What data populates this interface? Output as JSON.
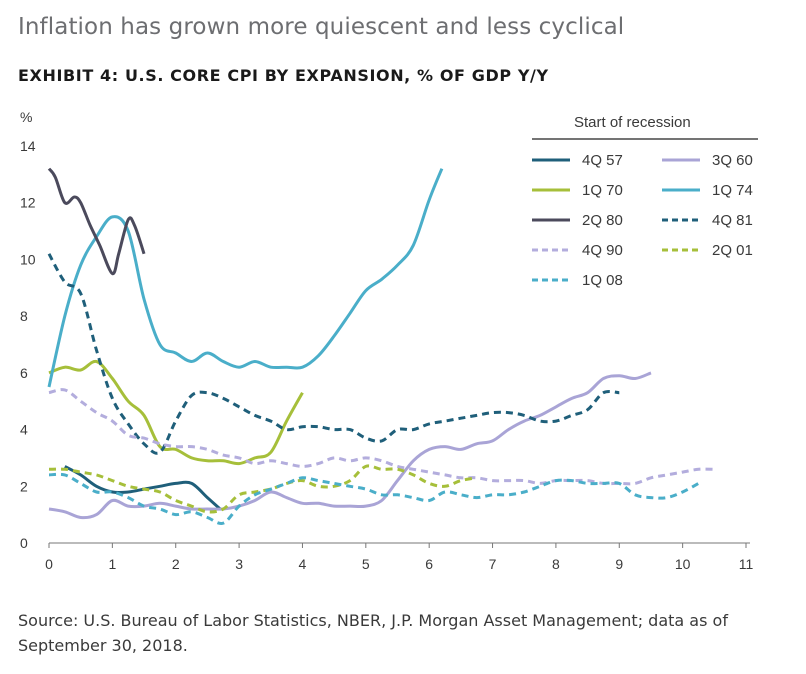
{
  "headline": "Inflation has grown more quiescent and less cyclical",
  "source": "Source: U.S. Bureau of Labor Statistics, NBER, J.P. Morgan Asset Management; data as of September 30, 2018.",
  "chart_data": {
    "type": "line",
    "title": "EXHIBIT 4: U.S. CORE CPI BY EXPANSION, % OF GDP Y/Y",
    "ylabel": "%",
    "legend_title": "Start of recession",
    "legend_position": "top-right",
    "xlim": [
      0,
      11
    ],
    "ylim": [
      0,
      14
    ],
    "x_ticks": [
      "0",
      "1",
      "2",
      "3",
      "4",
      "5",
      "6",
      "7",
      "8",
      "9",
      "10",
      "11"
    ],
    "y_ticks": [
      "0",
      "2",
      "4",
      "6",
      "8",
      "10",
      "12",
      "14"
    ],
    "grid": false,
    "series": [
      {
        "name": "4Q 57",
        "color": "#1f5f7a",
        "dash": false,
        "x": [
          0.25,
          0.5,
          0.75,
          1.0,
          1.25,
          1.5,
          1.75,
          2.0,
          2.25,
          2.5,
          2.7
        ],
        "y": [
          2.7,
          2.4,
          2.0,
          1.8,
          1.8,
          1.9,
          2.0,
          2.1,
          2.1,
          1.6,
          1.2
        ]
      },
      {
        "name": "3Q 60",
        "color": "#a9a4d6",
        "dash": false,
        "x": [
          0,
          0.25,
          0.5,
          0.75,
          1.0,
          1.25,
          1.5,
          1.75,
          2.0,
          2.25,
          2.5,
          2.75,
          3.0,
          3.25,
          3.5,
          3.75,
          4.0,
          4.25,
          4.5,
          4.75,
          5.0,
          5.25,
          5.5,
          5.75,
          6.0,
          6.25,
          6.5,
          6.75,
          7.0,
          7.25,
          7.5,
          7.75,
          8.0,
          8.25,
          8.5,
          8.75,
          9.0,
          9.25,
          9.5
        ],
        "y": [
          1.2,
          1.1,
          0.9,
          1.0,
          1.5,
          1.3,
          1.3,
          1.4,
          1.3,
          1.2,
          1.2,
          1.2,
          1.3,
          1.5,
          1.8,
          1.6,
          1.4,
          1.4,
          1.3,
          1.3,
          1.3,
          1.5,
          2.2,
          2.9,
          3.3,
          3.4,
          3.3,
          3.5,
          3.6,
          4.0,
          4.3,
          4.5,
          4.8,
          5.1,
          5.3,
          5.8,
          5.9,
          5.8,
          6.0
        ]
      },
      {
        "name": "1Q 70",
        "color": "#a6bf3a",
        "dash": false,
        "x": [
          0,
          0.25,
          0.5,
          0.75,
          1.0,
          1.25,
          1.5,
          1.75,
          2.0,
          2.25,
          2.5,
          2.75,
          3.0,
          3.25,
          3.5,
          3.75,
          4.0
        ],
        "y": [
          6.0,
          6.2,
          6.1,
          6.4,
          5.8,
          5.0,
          4.5,
          3.4,
          3.3,
          3.0,
          2.9,
          2.9,
          2.8,
          3.0,
          3.2,
          4.3,
          5.3
        ]
      },
      {
        "name": "1Q 74",
        "color": "#4aaec9",
        "dash": false,
        "x": [
          0,
          0.25,
          0.5,
          0.75,
          1.0,
          1.25,
          1.5,
          1.75,
          2.0,
          2.25,
          2.5,
          2.75,
          3.0,
          3.25,
          3.5,
          3.75,
          4.0,
          4.25,
          4.5,
          4.75,
          5.0,
          5.25,
          5.5,
          5.75,
          6.0,
          6.2
        ],
        "y": [
          5.5,
          8.0,
          9.8,
          10.8,
          11.5,
          11.0,
          8.6,
          7.0,
          6.7,
          6.4,
          6.7,
          6.4,
          6.2,
          6.4,
          6.2,
          6.2,
          6.2,
          6.6,
          7.3,
          8.1,
          8.9,
          9.3,
          9.8,
          10.5,
          12.1,
          13.2
        ]
      },
      {
        "name": "2Q 80",
        "color": "#4b4a5c",
        "dash": false,
        "x": [
          0,
          0.1,
          0.25,
          0.4,
          0.5,
          0.65,
          0.8,
          1.0,
          1.1,
          1.25,
          1.35,
          1.5
        ],
        "y": [
          13.2,
          12.9,
          12.0,
          12.2,
          12.0,
          11.2,
          10.5,
          9.5,
          10.2,
          11.4,
          11.2,
          10.2
        ]
      },
      {
        "name": "4Q 81",
        "color": "#1f5f7a",
        "dash": true,
        "x": [
          0,
          0.25,
          0.5,
          0.75,
          1.0,
          1.25,
          1.5,
          1.75,
          2.0,
          2.25,
          2.5,
          2.75,
          3.0,
          3.25,
          3.5,
          3.75,
          4.0,
          4.25,
          4.5,
          4.75,
          5.0,
          5.25,
          5.5,
          5.75,
          6.0,
          6.25,
          6.5,
          6.75,
          7.0,
          7.25,
          7.5,
          7.75,
          8.0,
          8.25,
          8.5,
          8.75,
          9.0
        ],
        "y": [
          10.2,
          9.2,
          8.8,
          6.8,
          5.1,
          4.2,
          3.5,
          3.2,
          4.3,
          5.2,
          5.3,
          5.1,
          4.8,
          4.5,
          4.3,
          4.0,
          4.1,
          4.1,
          4.0,
          4.0,
          3.7,
          3.6,
          4.0,
          4.0,
          4.2,
          4.3,
          4.4,
          4.5,
          4.6,
          4.6,
          4.5,
          4.3,
          4.3,
          4.5,
          4.7,
          5.3,
          5.3
        ]
      },
      {
        "name": "4Q 90",
        "color": "#b3addd",
        "dash": true,
        "x": [
          0,
          0.25,
          0.5,
          0.75,
          1.0,
          1.25,
          1.5,
          1.75,
          2.0,
          2.25,
          2.5,
          2.75,
          3.0,
          3.25,
          3.5,
          3.75,
          4.0,
          4.25,
          4.5,
          4.75,
          5.0,
          5.25,
          5.5,
          5.75,
          6.0,
          6.25,
          6.5,
          6.75,
          7.0,
          7.25,
          7.5,
          7.75,
          8.0,
          8.25,
          8.5,
          8.75,
          9.0,
          9.25,
          9.5,
          9.75,
          10.0,
          10.25,
          10.5
        ],
        "y": [
          5.3,
          5.4,
          5.0,
          4.6,
          4.3,
          3.8,
          3.7,
          3.5,
          3.4,
          3.4,
          3.3,
          3.1,
          3.0,
          2.8,
          2.9,
          2.8,
          2.7,
          2.8,
          3.0,
          2.9,
          3.0,
          2.9,
          2.7,
          2.6,
          2.5,
          2.4,
          2.3,
          2.3,
          2.2,
          2.2,
          2.2,
          2.1,
          2.2,
          2.2,
          2.2,
          2.1,
          2.1,
          2.1,
          2.3,
          2.4,
          2.5,
          2.6,
          2.6
        ]
      },
      {
        "name": "2Q 01",
        "color": "#a6bf3a",
        "dash": true,
        "x": [
          0,
          0.25,
          0.5,
          0.75,
          1.0,
          1.25,
          1.5,
          1.75,
          2.0,
          2.25,
          2.5,
          2.75,
          3.0,
          3.25,
          3.5,
          3.75,
          4.0,
          4.25,
          4.5,
          4.75,
          5.0,
          5.25,
          5.5,
          5.75,
          6.0,
          6.25,
          6.5,
          6.75
        ],
        "y": [
          2.6,
          2.6,
          2.5,
          2.4,
          2.2,
          2.0,
          1.9,
          1.8,
          1.5,
          1.3,
          1.1,
          1.2,
          1.7,
          1.8,
          1.9,
          2.1,
          2.2,
          2.0,
          2.0,
          2.2,
          2.7,
          2.6,
          2.6,
          2.4,
          2.1,
          2.0,
          2.2,
          2.3
        ]
      },
      {
        "name": "1Q 08",
        "color": "#4aaec9",
        "dash": true,
        "x": [
          0,
          0.25,
          0.5,
          0.75,
          1.0,
          1.25,
          1.5,
          1.75,
          2.0,
          2.25,
          2.5,
          2.75,
          3.0,
          3.25,
          3.5,
          3.75,
          4.0,
          4.25,
          4.5,
          4.75,
          5.0,
          5.25,
          5.5,
          5.75,
          6.0,
          6.25,
          6.5,
          6.75,
          7.0,
          7.25,
          7.5,
          7.75,
          8.0,
          8.25,
          8.5,
          8.75,
          9.0,
          9.25,
          9.5,
          9.75,
          10.0,
          10.25
        ],
        "y": [
          2.4,
          2.4,
          2.1,
          1.8,
          1.8,
          1.6,
          1.3,
          1.2,
          1.0,
          1.1,
          0.9,
          0.7,
          1.3,
          1.7,
          1.9,
          2.1,
          2.3,
          2.2,
          2.1,
          2.0,
          1.9,
          1.7,
          1.7,
          1.6,
          1.5,
          1.8,
          1.7,
          1.6,
          1.7,
          1.7,
          1.8,
          2.0,
          2.2,
          2.2,
          2.1,
          2.1,
          2.1,
          1.7,
          1.6,
          1.6,
          1.8,
          2.1
        ]
      }
    ]
  }
}
